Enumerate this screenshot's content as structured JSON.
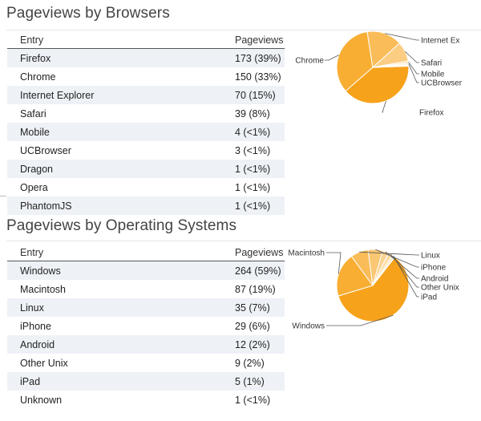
{
  "browsers": {
    "title": "Pageviews by Browsers",
    "columns": {
      "entry": "Entry",
      "pageviews": "Pageviews"
    },
    "rows": [
      {
        "entry": "Firefox",
        "pageviews": "173 (39%)"
      },
      {
        "entry": "Chrome",
        "pageviews": "150 (33%)"
      },
      {
        "entry": "Internet Explorer",
        "pageviews": "70 (15%)"
      },
      {
        "entry": "Safari",
        "pageviews": "39 (8%)"
      },
      {
        "entry": "Mobile",
        "pageviews": "4 (<1%)"
      },
      {
        "entry": "UCBrowser",
        "pageviews": "3 (<1%)"
      },
      {
        "entry": "Dragon",
        "pageviews": "1 (<1%)"
      },
      {
        "entry": "Opera",
        "pageviews": "1 (<1%)"
      },
      {
        "entry": "PhantomJS",
        "pageviews": "1 (<1%)"
      }
    ]
  },
  "os": {
    "title": "Pageviews by Operating Systems",
    "columns": {
      "entry": "Entry",
      "pageviews": "Pageviews"
    },
    "rows": [
      {
        "entry": "Windows",
        "pageviews": "264 (59%)"
      },
      {
        "entry": "Macintosh",
        "pageviews": "87 (19%)"
      },
      {
        "entry": "Linux",
        "pageviews": "35 (7%)"
      },
      {
        "entry": "iPhone",
        "pageviews": "29 (6%)"
      },
      {
        "entry": "Android",
        "pageviews": "12 (2%)"
      },
      {
        "entry": "Other Unix",
        "pageviews": "9 (2%)"
      },
      {
        "entry": "iPad",
        "pageviews": "5 (1%)"
      },
      {
        "entry": "Unknown",
        "pageviews": "1 (<1%)"
      }
    ]
  },
  "chart_data": [
    {
      "type": "pie",
      "categories": [
        "Firefox",
        "Chrome",
        "Internet Explorer",
        "Safari",
        "Mobile",
        "UCBrowser",
        "Dragon",
        "Opera",
        "PhantomJS"
      ],
      "values": [
        173,
        150,
        70,
        39,
        4,
        3,
        1,
        1,
        1
      ],
      "labels": [
        "Firefox",
        "Chrome",
        "Internet Ex",
        "Safari",
        "Mobile",
        "UCBrowser"
      ],
      "colors": [
        "#f7a21b",
        "#f8ae33",
        "#f9bc58",
        "#fbcd83",
        "#fcdca6",
        "#fde6bd",
        "#fdebc9",
        "#feefd3",
        "#fef3de"
      ]
    },
    {
      "type": "pie",
      "categories": [
        "Windows",
        "Macintosh",
        "Linux",
        "iPhone",
        "Android",
        "Other Unix",
        "iPad",
        "Unknown"
      ],
      "values": [
        264,
        87,
        35,
        29,
        12,
        9,
        5,
        1
      ],
      "labels": [
        "Windows",
        "Macintosh",
        "Linux",
        "iPhone",
        "Android",
        "Other Unix",
        "iPad"
      ],
      "colors": [
        "#f7a21b",
        "#f8ae33",
        "#f9bc58",
        "#fac774",
        "#fbd290",
        "#fcdca6",
        "#fde5bb",
        "#feeed2"
      ]
    }
  ]
}
